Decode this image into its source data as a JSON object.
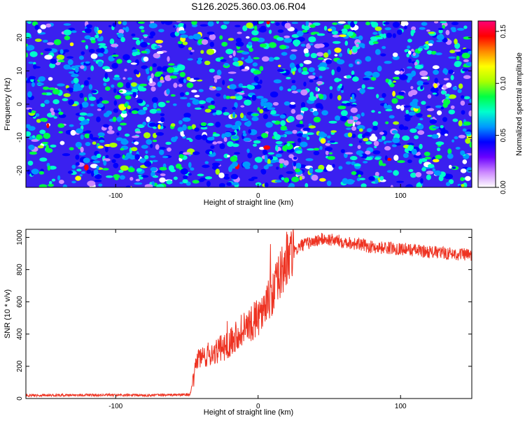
{
  "title": "S126.2025.360.03.06.R04",
  "charts": [
    {
      "type": "heatmap",
      "xlabel": "Height of straight line (km)",
      "ylabel": "Frequency (Hz)",
      "xlim": [
        -163,
        150
      ],
      "ylim": [
        -25,
        25
      ],
      "x_ticks": [
        -100,
        0,
        100
      ],
      "y_ticks": [
        -20,
        -10,
        0,
        10,
        20
      ],
      "colorbar": {
        "label": "Normalized spectral amplitude",
        "range": [
          0.0,
          0.16
        ],
        "ticks": [
          0.0,
          0.05,
          0.1,
          0.15
        ],
        "tick_labels": [
          "0.00",
          "0.05",
          "0.10",
          "0.15"
        ],
        "colors": [
          "#ffffff",
          "#cc88ff",
          "#6a00ff",
          "#0000ff",
          "#0099ff",
          "#00ffcc",
          "#00ff44",
          "#aaff00",
          "#ffff00",
          "#ff8800",
          "#ff0000",
          "#ff0077"
        ]
      },
      "description_color": "#3a20f0"
    },
    {
      "type": "line",
      "xlabel": "Height of straight line (km)",
      "ylabel": "SNR (10 * v/v)",
      "xlim": [
        -163,
        150
      ],
      "ylim": [
        0,
        1050
      ],
      "x_ticks": [
        -100,
        0,
        100
      ],
      "y_ticks": [
        0,
        200,
        400,
        600,
        800,
        1000
      ],
      "line_color": "#ee3322",
      "profile": [
        {
          "x": -163,
          "y": 20
        },
        {
          "x": -120,
          "y": 22
        },
        {
          "x": -80,
          "y": 20
        },
        {
          "x": -48,
          "y": 24
        },
        {
          "x": -45,
          "y": 120
        },
        {
          "x": -43,
          "y": 250
        },
        {
          "x": -38,
          "y": 260
        },
        {
          "x": -30,
          "y": 290
        },
        {
          "x": -22,
          "y": 330
        },
        {
          "x": -15,
          "y": 400
        },
        {
          "x": -5,
          "y": 460
        },
        {
          "x": 5,
          "y": 560
        },
        {
          "x": 12,
          "y": 680
        },
        {
          "x": 20,
          "y": 860
        },
        {
          "x": 30,
          "y": 950
        },
        {
          "x": 45,
          "y": 990
        },
        {
          "x": 60,
          "y": 975
        },
        {
          "x": 80,
          "y": 940
        },
        {
          "x": 100,
          "y": 930
        },
        {
          "x": 120,
          "y": 910
        },
        {
          "x": 150,
          "y": 890
        }
      ]
    }
  ]
}
